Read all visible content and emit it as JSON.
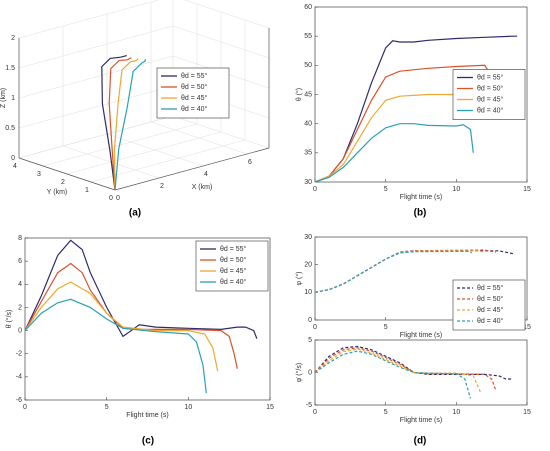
{
  "chart_data": [
    {
      "type": "line3d",
      "panel_label": "(a)",
      "xlabel": "X (km)",
      "ylabel": "Y (km)",
      "zlabel": "Z (km)",
      "xlim": [
        0,
        7
      ],
      "xticks": [
        0,
        2,
        4,
        6
      ],
      "ylim": [
        0,
        4
      ],
      "yticks": [
        0,
        1,
        2,
        3,
        4
      ],
      "zlim": [
        0,
        2
      ],
      "zticks": [
        0,
        0.5,
        1,
        1.5,
        2
      ],
      "grid": true,
      "legend": "center right",
      "series": [
        {
          "name": "θd = 55°",
          "color": "#2e2a6e",
          "x": [
            0,
            0.1,
            0.3,
            0.6,
            1.2,
            2,
            2.5
          ],
          "y": [
            0,
            0.3,
            0.8,
            1.1,
            1.3,
            1.6,
            1.8
          ],
          "z": [
            0,
            0.6,
            1.3,
            1.85,
            1.9,
            1.8,
            1.75
          ]
        },
        {
          "name": "θd = 50°",
          "color": "#d9532b",
          "x": [
            0,
            0.2,
            0.5,
            0.9,
            1.5,
            2.2,
            2.6
          ],
          "y": [
            0,
            0.3,
            0.7,
            1.0,
            1.2,
            1.5,
            1.7
          ],
          "z": [
            0,
            0.6,
            1.3,
            1.8,
            1.85,
            1.75,
            1.72
          ]
        },
        {
          "name": "θd = 45°",
          "color": "#f0a830",
          "x": [
            0,
            0.3,
            0.8,
            1.3,
            1.9,
            2.5,
            2.8
          ],
          "y": [
            0,
            0.3,
            0.6,
            0.9,
            1.1,
            1.4,
            1.6
          ],
          "z": [
            0,
            0.6,
            1.3,
            1.75,
            1.8,
            1.72,
            1.7
          ]
        },
        {
          "name": "θd = 40°",
          "color": "#2aa0b8",
          "x": [
            0,
            0.5,
            1.1,
            1.7,
            2.3,
            2.8,
            3.0
          ],
          "y": [
            0,
            0.3,
            0.5,
            0.8,
            1.0,
            1.3,
            1.5
          ],
          "z": [
            0,
            0.6,
            1.2,
            1.7,
            1.75,
            1.7,
            1.68
          ]
        }
      ]
    },
    {
      "type": "line",
      "panel_label": "(b)",
      "xlabel": "Flight time (s)",
      "ylabel": "θ (°)",
      "xlim": [
        0,
        15
      ],
      "xticks": [
        0,
        5,
        10,
        15
      ],
      "ylim": [
        30,
        60
      ],
      "yticks": [
        30,
        35,
        40,
        45,
        50,
        55,
        60
      ],
      "legend": "center right",
      "line_style": "solid",
      "series": [
        {
          "name": "θd = 55°",
          "color": "#2e2a6e",
          "x": [
            0,
            1,
            2,
            3,
            4,
            5,
            5.5,
            6,
            7,
            8,
            10,
            12,
            14,
            14.3
          ],
          "values": [
            30,
            31,
            34,
            40,
            47,
            53,
            54.2,
            54,
            54,
            54.3,
            54.6,
            54.8,
            55,
            55
          ]
        },
        {
          "name": "θd = 50°",
          "color": "#d9532b",
          "x": [
            0,
            1,
            2,
            3,
            4,
            5,
            6,
            8,
            10,
            12,
            12.2
          ],
          "values": [
            30,
            31,
            34,
            39,
            44,
            48,
            49,
            49.5,
            49.8,
            50,
            49.3
          ]
        },
        {
          "name": "θd = 45°",
          "color": "#f0a830",
          "x": [
            0,
            1,
            2,
            3,
            4,
            5,
            6,
            8,
            10,
            11.5,
            11.7
          ],
          "values": [
            30,
            31,
            33,
            37,
            41,
            44,
            44.7,
            45,
            45,
            45,
            44.8
          ]
        },
        {
          "name": "θd = 40°",
          "color": "#2aa0b8",
          "x": [
            0,
            1,
            2,
            3,
            4,
            5,
            6,
            7,
            8,
            10,
            10.5,
            11,
            11.2
          ],
          "values": [
            30,
            30.8,
            32.5,
            35,
            37.5,
            39.3,
            40,
            40,
            39.7,
            39.6,
            39.8,
            39,
            35
          ]
        }
      ]
    },
    {
      "type": "line",
      "panel_label": "(c)",
      "xlabel": "Flight time (s)",
      "ylabel": "θ̇ (°/s)",
      "xlim": [
        0,
        15
      ],
      "xticks": [
        0,
        5,
        10,
        15
      ],
      "ylim": [
        -6,
        8
      ],
      "yticks": [
        -6,
        -4,
        -2,
        0,
        2,
        4,
        6,
        8
      ],
      "legend": "upper right",
      "line_style": "solid",
      "series": [
        {
          "name": "θd = 55°",
          "color": "#2e2a6e",
          "x": [
            0,
            1,
            2,
            2.8,
            3.5,
            4,
            5,
            6,
            7,
            8,
            10,
            12,
            13,
            13.5,
            14,
            14.2
          ],
          "values": [
            0,
            3,
            6.5,
            7.8,
            7,
            5,
            2,
            -0.5,
            0.5,
            0.3,
            0.2,
            0.1,
            0.3,
            0.3,
            0,
            -0.7
          ]
        },
        {
          "name": "θd = 50°",
          "color": "#d9532b",
          "x": [
            0,
            1,
            2,
            2.8,
            3.5,
            4,
            5,
            6,
            7,
            10,
            12,
            12.5,
            12.8,
            13
          ],
          "values": [
            0,
            2.5,
            5,
            5.8,
            5,
            3.5,
            1.5,
            0.2,
            0.1,
            0.1,
            0,
            -0.5,
            -2,
            -3.3
          ]
        },
        {
          "name": "θd = 45°",
          "color": "#f0a830",
          "x": [
            0,
            1,
            2,
            2.8,
            4,
            5,
            6,
            8,
            10,
            11,
            11.5,
            11.8
          ],
          "values": [
            0,
            2,
            3.6,
            4.2,
            3.2,
            1.5,
            0.3,
            0,
            0,
            -0.3,
            -1.5,
            -3.5
          ]
        },
        {
          "name": "θd = 40°",
          "color": "#2aa0b8",
          "x": [
            0,
            1,
            2,
            2.8,
            4,
            5,
            6,
            8,
            10,
            10.5,
            10.9,
            11.1
          ],
          "values": [
            0,
            1.5,
            2.4,
            2.7,
            2,
            1,
            0.2,
            -0.1,
            -0.3,
            -1,
            -3,
            -5.4
          ]
        }
      ]
    },
    {
      "type": "line",
      "xlabel": "Flight time (s)",
      "ylabel": "φ (°)",
      "xlim": [
        0,
        15
      ],
      "xticks": [
        0,
        5,
        10,
        15
      ],
      "ylim": [
        0,
        30
      ],
      "yticks": [
        0,
        10,
        20,
        30
      ],
      "legend": "lower right",
      "line_style": "dashed",
      "series": [
        {
          "name": "θd = 55°",
          "color": "#2e2a6e",
          "x": [
            0,
            1,
            2,
            3,
            4,
            5,
            6,
            7,
            10,
            12,
            13,
            14
          ],
          "values": [
            10,
            11,
            13,
            16,
            19,
            22,
            24.5,
            25,
            25,
            25,
            25,
            24
          ]
        },
        {
          "name": "θd = 50°",
          "color": "#d9532b",
          "x": [
            0,
            1,
            2,
            3,
            4,
            5,
            6,
            7,
            10,
            12,
            12.8
          ],
          "values": [
            10,
            11,
            13,
            16,
            19,
            22,
            24.5,
            25,
            25.2,
            25.3,
            24.5
          ]
        },
        {
          "name": "θd = 45°",
          "color": "#f0a830",
          "x": [
            0,
            1,
            2,
            3,
            4,
            5,
            6,
            7,
            10,
            11.5,
            11.8
          ],
          "values": [
            10,
            11,
            13,
            16,
            19,
            22,
            24.3,
            24.8,
            25,
            25,
            24.6
          ]
        },
        {
          "name": "θd = 40°",
          "color": "#2aa0b8",
          "x": [
            0,
            1,
            2,
            3,
            4,
            5,
            6,
            7,
            10,
            10.8,
            11.1
          ],
          "values": [
            10,
            11,
            13,
            16,
            19,
            22,
            24.2,
            24.7,
            24.8,
            24.8,
            24.3
          ]
        }
      ]
    },
    {
      "type": "line",
      "panel_label": "(d)",
      "xlabel": "Flight time (s)",
      "ylabel": "φ̇ (°/s)",
      "xlim": [
        0,
        15
      ],
      "xticks": [
        0,
        5,
        10,
        15
      ],
      "ylim": [
        -5,
        5
      ],
      "yticks": [
        -5,
        0,
        5
      ],
      "line_style": "dashed",
      "series": [
        {
          "name": "θd = 55°",
          "color": "#2e2a6e",
          "x": [
            0,
            1,
            2,
            3,
            4,
            5,
            6,
            7,
            8,
            10,
            12,
            13,
            13.5,
            14
          ],
          "values": [
            0,
            2.5,
            3.8,
            4,
            3.5,
            2.5,
            1.5,
            0,
            -0.3,
            -0.3,
            -0.3,
            -0.5,
            -1,
            -1
          ]
        },
        {
          "name": "θd = 50°",
          "color": "#d9532b",
          "x": [
            0,
            1,
            2,
            3,
            4,
            5,
            6,
            7,
            8,
            10,
            12,
            12.5,
            12.8
          ],
          "values": [
            0,
            2.2,
            3.5,
            3.8,
            3.3,
            2.3,
            1.3,
            0,
            -0.2,
            -0.2,
            -0.3,
            -1,
            -2.8
          ]
        },
        {
          "name": "θd = 45°",
          "color": "#f0a830",
          "x": [
            0,
            1,
            2,
            3,
            4,
            5,
            6,
            7,
            8,
            10,
            11.2,
            11.7
          ],
          "values": [
            0,
            1.8,
            3.2,
            3.6,
            3,
            2,
            1,
            0,
            -0.1,
            -0.1,
            -0.5,
            -3
          ]
        },
        {
          "name": "θd = 40°",
          "color": "#2aa0b8",
          "x": [
            0,
            1,
            2,
            3,
            4,
            5,
            6,
            7,
            8,
            10,
            10.6,
            11
          ],
          "values": [
            0,
            1.5,
            2.8,
            3.3,
            2.8,
            1.8,
            0.8,
            0,
            -0.1,
            -0.2,
            -1,
            -4
          ]
        }
      ]
    }
  ]
}
